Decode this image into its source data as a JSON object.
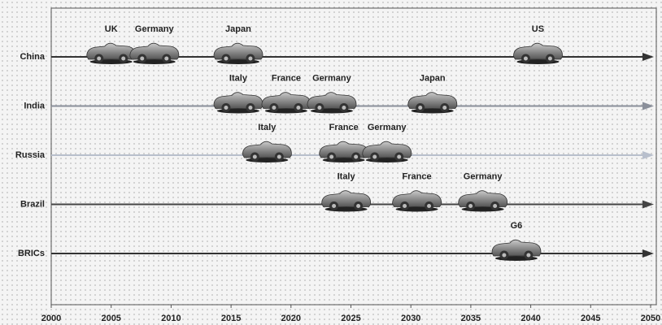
{
  "chart_data": {
    "type": "timeline",
    "rows": [
      {
        "name": "China",
        "color": "#333333",
        "events": [
          {
            "label": "UK",
            "year": 2005
          },
          {
            "label": "Germany",
            "year": 2008.6
          },
          {
            "label": "Japan",
            "year": 2015.6
          },
          {
            "label": "US",
            "year": 2040.6
          }
        ]
      },
      {
        "name": "India",
        "color": "#8a8f9a",
        "events": [
          {
            "label": "Italy",
            "year": 2015.6
          },
          {
            "label": "France",
            "year": 2019.6
          },
          {
            "label": "Germany",
            "year": 2023.4
          },
          {
            "label": "Japan",
            "year": 2031.8
          }
        ]
      },
      {
        "name": "Russia",
        "color": "#b8bfcc",
        "events": [
          {
            "label": "Italy",
            "year": 2018
          },
          {
            "label": "France",
            "year": 2024.4
          },
          {
            "label": "Germany",
            "year": 2028
          }
        ]
      },
      {
        "name": "Brazil",
        "color": "#444444",
        "events": [
          {
            "label": "Italy",
            "year": 2024.6
          },
          {
            "label": "France",
            "year": 2030.5
          },
          {
            "label": "Germany",
            "year": 2036
          }
        ]
      },
      {
        "name": "BRICs",
        "color": "#333333",
        "events": [
          {
            "label": "G6",
            "year": 2038.8
          }
        ]
      }
    ],
    "xlim": [
      2000,
      2050
    ],
    "xticks": [
      2000,
      2005,
      2010,
      2015,
      2020,
      2025,
      2030,
      2035,
      2040,
      2045,
      2050
    ]
  }
}
